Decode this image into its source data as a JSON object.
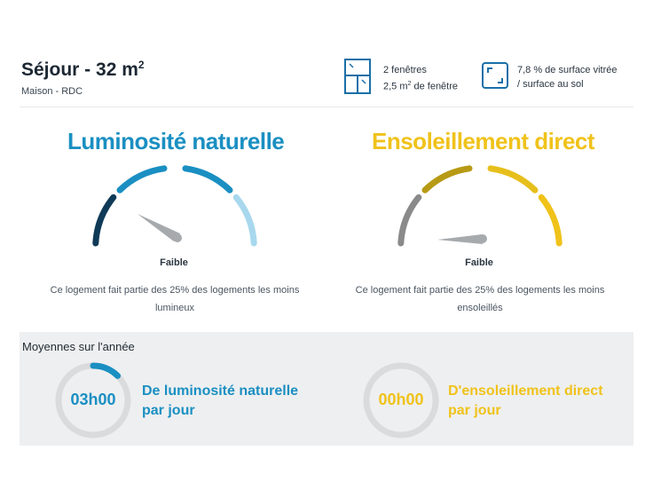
{
  "room": {
    "title": "Séjour - 32 m",
    "title_sup": "2",
    "subtitle": "Maison - RDC"
  },
  "windows_info": {
    "line1": "2 fenêtres",
    "line2_prefix": "2,5 m",
    "line2_sup": "2",
    "line2_suffix": " de fenêtre",
    "icon": "window-icon"
  },
  "glass_info": {
    "line1": "7,8 % de surface vitrée",
    "line2": "/ surface au sol",
    "icon": "glass-surface-icon"
  },
  "luminosity": {
    "title": "Luminosité naturelle",
    "level": "Faible",
    "description_line1": "Ce logement fait partie des 25% des logements les moins",
    "description_line2": "lumineux",
    "colors": [
      "#0f3a57",
      "#1a8fc2",
      "#1a8fc2",
      "#a8d8ee"
    ],
    "accent": "#1a8fc2"
  },
  "sunshine": {
    "title": "Ensoleillement direct",
    "level": "Faible",
    "description_line1": "Ce logement fait partie des 25% des logements les moins",
    "description_line2": "ensoleillés",
    "colors": [
      "#8a8a8a",
      "#b79a14",
      "#e7bf1c",
      "#f0c21a"
    ],
    "accent": "#f0c21a"
  },
  "averages": {
    "title": "Moyennes sur l'année",
    "luminosity": {
      "value": "03h00",
      "label_line1": "De luminosité naturelle",
      "label_line2": "par jour",
      "progress": 0.125
    },
    "sunshine": {
      "value": "00h00",
      "label_line1": "D'ensoleillement direct",
      "label_line2": "par jour",
      "progress": 0
    }
  }
}
